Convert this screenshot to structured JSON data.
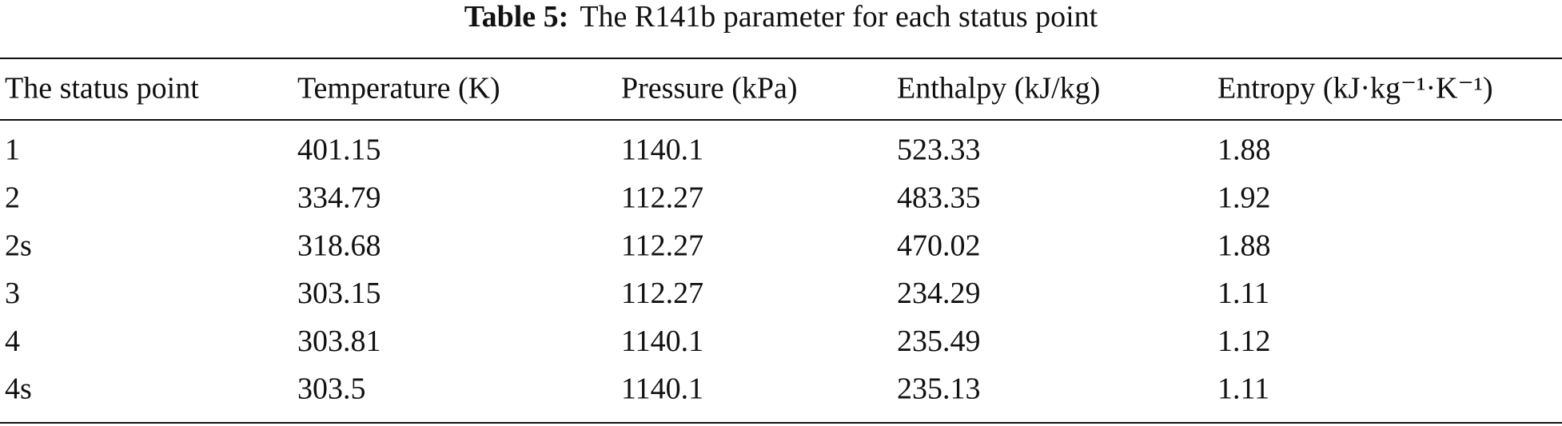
{
  "table": {
    "label": "Table 5:",
    "caption": "The R141b parameter for each status point",
    "header": [
      "The status point",
      "Temperature (K)",
      "Pressure (kPa)",
      "Enthalpy (kJ/kg)",
      "Entropy (kJ·kg⁻¹·K⁻¹)"
    ],
    "rows": [
      [
        "1",
        "401.15",
        "1140.1",
        "523.33",
        "1.88"
      ],
      [
        "2",
        "334.79",
        "112.27",
        "483.35",
        "1.92"
      ],
      [
        "2s",
        "318.68",
        "112.27",
        "470.02",
        "1.88"
      ],
      [
        "3",
        "303.15",
        "112.27",
        "234.29",
        "1.11"
      ],
      [
        "4",
        "303.81",
        "1140.1",
        "235.49",
        "1.12"
      ],
      [
        "4s",
        "303.5",
        "1140.1",
        "235.13",
        "1.11"
      ]
    ]
  }
}
